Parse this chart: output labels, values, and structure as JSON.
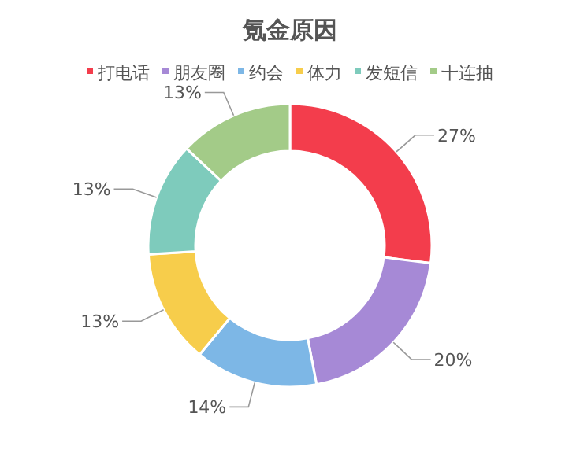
{
  "chart_data": {
    "type": "donut",
    "title": "氪金原因",
    "categories": [
      "打电话",
      "朋友圈",
      "约会",
      "体力",
      "发短信",
      "十连抽"
    ],
    "values": [
      27,
      20,
      14,
      13,
      13,
      13
    ],
    "colors": [
      "#f33d4c",
      "#a689d6",
      "#7db7e6",
      "#f7cd4b",
      "#7ecbbc",
      "#a3cb88"
    ],
    "value_labels": [
      "27%",
      "20%",
      "14%",
      "13%",
      "13%",
      "13%"
    ],
    "legend": "top"
  }
}
